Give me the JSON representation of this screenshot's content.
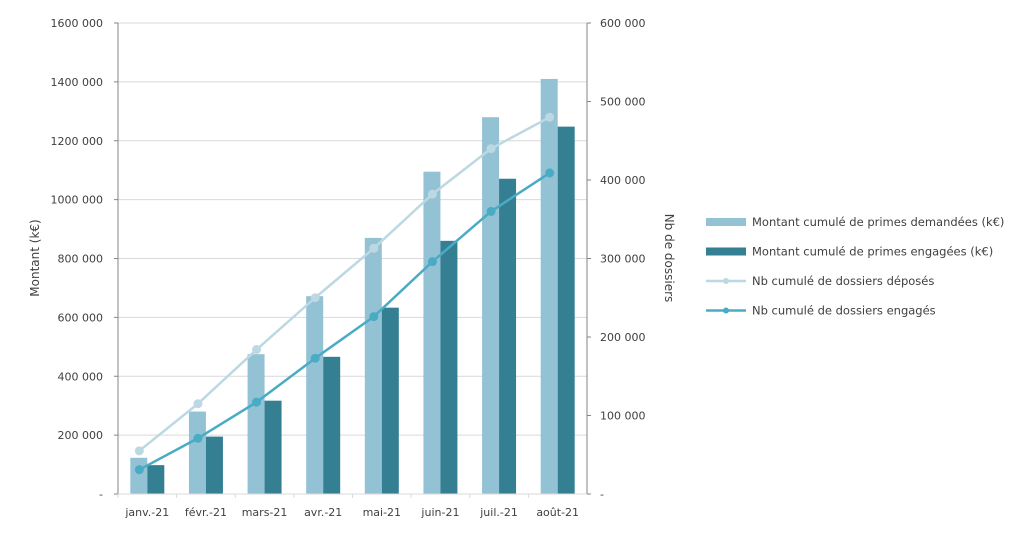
{
  "chart_data": {
    "type": "bar+line",
    "categories": [
      "janv.-21",
      "févr.-21",
      "mars-21",
      "avr.-21",
      "mai-21",
      "juin-21",
      "juil.-21",
      "août-21"
    ],
    "ylabel_left": "Montant (k€)",
    "ylabel_right": "Nb de dossiers",
    "ylim_left": [
      0,
      1600000
    ],
    "ylim_right": [
      0,
      600000
    ],
    "yticks_left": [
      "-",
      "200 000",
      "400 000",
      "600 000",
      "800 000",
      "1000 000",
      "1200 000",
      "1400 000",
      "1600 000"
    ],
    "yticks_right": [
      "-",
      "100 000",
      "200 000",
      "300 000",
      "400 000",
      "500 000",
      "600 000"
    ],
    "grid": true,
    "legend_position": "right",
    "series": [
      {
        "name": "Montant cumulé de primes demandées (k€)",
        "kind": "bar",
        "axis": "left",
        "color": "#93c2d4",
        "values": [
          123000,
          280000,
          475000,
          672000,
          870000,
          1095000,
          1280000,
          1410000
        ]
      },
      {
        "name": "Montant cumulé de primes engagées (k€)",
        "kind": "bar",
        "axis": "left",
        "color": "#357f93",
        "values": [
          98000,
          195000,
          317000,
          466000,
          633000,
          860000,
          1071000,
          1248000
        ]
      },
      {
        "name": "Nb cumulé de dossiers déposés",
        "kind": "line",
        "axis": "right",
        "color": "#bcd8e3",
        "values": [
          55000,
          115000,
          184000,
          250000,
          313000,
          382000,
          440000,
          480000
        ]
      },
      {
        "name": "Nb cumulé de dossiers engagés",
        "kind": "line",
        "axis": "right",
        "color": "#4aabc4",
        "values": [
          31000,
          71000,
          117000,
          173000,
          226000,
          296000,
          360000,
          409000
        ]
      }
    ]
  }
}
